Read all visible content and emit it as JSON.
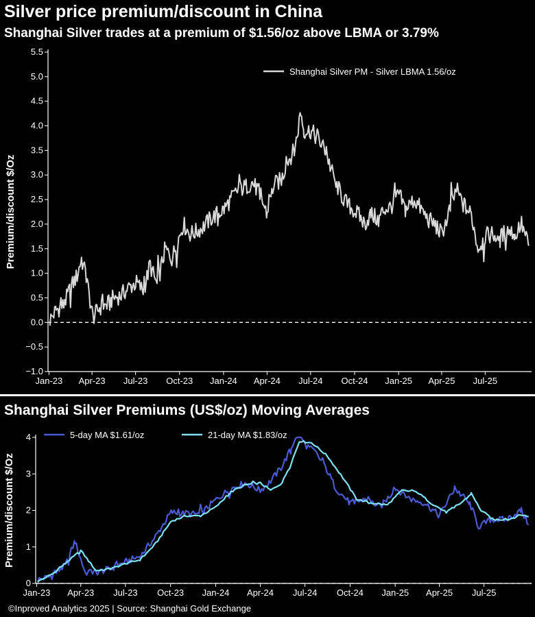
{
  "chart1": {
    "title": "Silver price premium/discount in China",
    "subtitle": "Shanghai Silver trades at a premium of $1.56/oz above LBMA or 3.79%"
  },
  "chart2": {
    "title": "Shanghai Silver Premiums (US$/oz) Moving Averages"
  },
  "footer": "©Inproved Analytics 2025 | Source: Shanghai Gold Exchange",
  "colors": {
    "background": "#000000",
    "premium_line": "#d9d9d9",
    "ma5_line": "#4a5bd4",
    "ma21_line": "#7fe3f5",
    "zero_line": "#ffffff"
  },
  "chart_data": [
    {
      "type": "line",
      "ylabel": "Premium/discount $/Oz",
      "ylim": [
        -1.0,
        5.5
      ],
      "yticks": [
        "−1.0",
        "−0.5",
        "0.0",
        "0.5",
        "1.0",
        "1.5",
        "2.0",
        "2.5",
        "3.0",
        "3.5",
        "4.0",
        "4.5",
        "5.0",
        "5.5"
      ],
      "xticks": [
        "Jan-23",
        "Apr-23",
        "Jul-23",
        "Oct-23",
        "Jan-24",
        "Apr-24",
        "Jul-24",
        "Oct-24",
        "Jan-25",
        "Apr-25",
        "Jul-25"
      ],
      "legend_position": "top-right",
      "zero_line": "dashed",
      "series": [
        {
          "name": "Shanghai Silver PM - Silver LBMA 1.56/oz",
          "x": [
            "2023-01-03",
            "2023-01-16",
            "2023-02-01",
            "2023-02-15",
            "2023-03-01",
            "2023-03-10",
            "2023-03-20",
            "2023-04-03",
            "2023-04-17",
            "2023-05-02",
            "2023-05-16",
            "2023-06-01",
            "2023-06-15",
            "2023-07-03",
            "2023-07-17",
            "2023-08-01",
            "2023-08-15",
            "2023-09-01",
            "2023-09-15",
            "2023-10-09",
            "2023-10-23",
            "2023-11-06",
            "2023-11-20",
            "2023-12-04",
            "2023-12-18",
            "2024-01-02",
            "2024-01-16",
            "2024-02-01",
            "2024-02-15",
            "2024-03-01",
            "2024-03-15",
            "2024-04-01",
            "2024-04-15",
            "2024-05-01",
            "2024-05-15",
            "2024-05-28",
            "2024-06-03",
            "2024-06-10",
            "2024-06-17",
            "2024-07-01",
            "2024-07-15",
            "2024-08-01",
            "2024-08-15",
            "2024-09-02",
            "2024-09-16",
            "2024-10-08",
            "2024-10-22",
            "2024-11-04",
            "2024-11-18",
            "2024-12-02",
            "2024-12-16",
            "2025-01-02",
            "2025-01-15",
            "2025-02-03",
            "2025-02-17",
            "2025-03-03",
            "2025-03-17",
            "2025-04-01",
            "2025-04-15",
            "2025-05-02",
            "2025-05-16",
            "2025-06-02",
            "2025-06-16",
            "2025-07-01",
            "2025-07-15",
            "2025-08-01",
            "2025-08-15",
            "2025-09-01",
            "2025-09-15",
            "2025-09-30"
          ],
          "y": [
            0.05,
            0.25,
            0.35,
            0.7,
            0.95,
            1.3,
            0.9,
            0.1,
            0.3,
            0.35,
            0.5,
            0.55,
            0.7,
            0.8,
            0.65,
            1.15,
            0.75,
            1.5,
            1.3,
            2.0,
            1.8,
            1.85,
            1.95,
            2.1,
            2.2,
            2.3,
            2.5,
            2.7,
            2.75,
            2.85,
            2.65,
            2.2,
            2.8,
            2.9,
            3.3,
            3.5,
            3.8,
            4.3,
            3.9,
            3.9,
            3.75,
            3.5,
            3.05,
            2.6,
            2.4,
            2.2,
            2.0,
            2.2,
            2.1,
            2.3,
            2.35,
            2.6,
            2.3,
            2.5,
            2.3,
            2.1,
            2.0,
            1.8,
            2.2,
            2.7,
            2.4,
            2.2,
            1.5,
            1.75,
            1.8,
            1.7,
            1.9,
            1.8,
            2.0,
            1.56
          ]
        }
      ]
    },
    {
      "type": "line",
      "ylabel": "Premium/discount $/Oz",
      "ylim": [
        0,
        4
      ],
      "yticks": [
        "0",
        "1",
        "2",
        "3",
        "4"
      ],
      "xticks": [
        "Jan-23",
        "Apr-23",
        "Jul-23",
        "Oct-23",
        "Jan-24",
        "Apr-24",
        "Jul-24",
        "Oct-24",
        "Jan-25",
        "Apr-25",
        "Jul-25"
      ],
      "legend_position": "top-left",
      "zero_line": "dashed",
      "series": [
        {
          "name": "5-day MA $1.61/oz",
          "x": [
            "2023-01-03",
            "2023-02-01",
            "2023-03-01",
            "2023-03-20",
            "2023-04-10",
            "2023-05-02",
            "2023-06-01",
            "2023-07-03",
            "2023-08-01",
            "2023-09-01",
            "2023-10-02",
            "2023-11-01",
            "2023-12-01",
            "2024-01-02",
            "2024-02-01",
            "2024-03-01",
            "2024-04-01",
            "2024-04-22",
            "2024-05-15",
            "2024-06-03",
            "2024-06-17",
            "2024-07-01",
            "2024-07-22",
            "2024-08-15",
            "2024-09-02",
            "2024-10-01",
            "2024-11-01",
            "2024-12-02",
            "2025-01-02",
            "2025-02-03",
            "2025-03-03",
            "2025-04-01",
            "2025-05-02",
            "2025-06-02",
            "2025-06-20",
            "2025-07-15",
            "2025-08-15",
            "2025-09-15",
            "2025-09-30"
          ],
          "y": [
            0.1,
            0.2,
            0.5,
            1.15,
            0.3,
            0.3,
            0.4,
            0.6,
            0.75,
            1.3,
            1.95,
            1.9,
            1.9,
            2.3,
            2.6,
            2.75,
            2.55,
            2.8,
            3.2,
            3.7,
            4.2,
            3.8,
            3.6,
            3.1,
            2.6,
            2.2,
            2.3,
            2.1,
            2.6,
            2.3,
            2.2,
            1.85,
            2.6,
            2.2,
            1.55,
            1.75,
            1.75,
            2.0,
            1.61
          ]
        },
        {
          "name": "21-day MA $1.83/oz",
          "x": [
            "2023-01-03",
            "2023-02-01",
            "2023-03-01",
            "2023-04-01",
            "2023-05-02",
            "2023-06-01",
            "2023-07-03",
            "2023-08-01",
            "2023-09-01",
            "2023-10-02",
            "2023-11-01",
            "2023-12-01",
            "2024-01-02",
            "2024-02-01",
            "2024-03-01",
            "2024-04-01",
            "2024-04-22",
            "2024-05-15",
            "2024-06-03",
            "2024-06-20",
            "2024-07-15",
            "2024-08-15",
            "2024-09-16",
            "2024-10-15",
            "2024-11-15",
            "2024-12-16",
            "2025-01-15",
            "2025-02-15",
            "2025-03-15",
            "2025-04-15",
            "2025-05-15",
            "2025-06-05",
            "2025-06-25",
            "2025-07-20",
            "2025-08-20",
            "2025-09-15",
            "2025-09-30"
          ],
          "y": [
            0.05,
            0.25,
            0.55,
            0.9,
            0.35,
            0.4,
            0.55,
            0.65,
            1.1,
            1.7,
            1.85,
            1.85,
            2.1,
            2.5,
            2.7,
            2.75,
            2.55,
            2.75,
            3.3,
            3.9,
            3.85,
            3.5,
            2.9,
            2.3,
            2.2,
            2.15,
            2.55,
            2.5,
            2.2,
            1.95,
            2.2,
            2.45,
            2.0,
            1.75,
            1.75,
            1.88,
            1.83
          ]
        }
      ]
    }
  ]
}
